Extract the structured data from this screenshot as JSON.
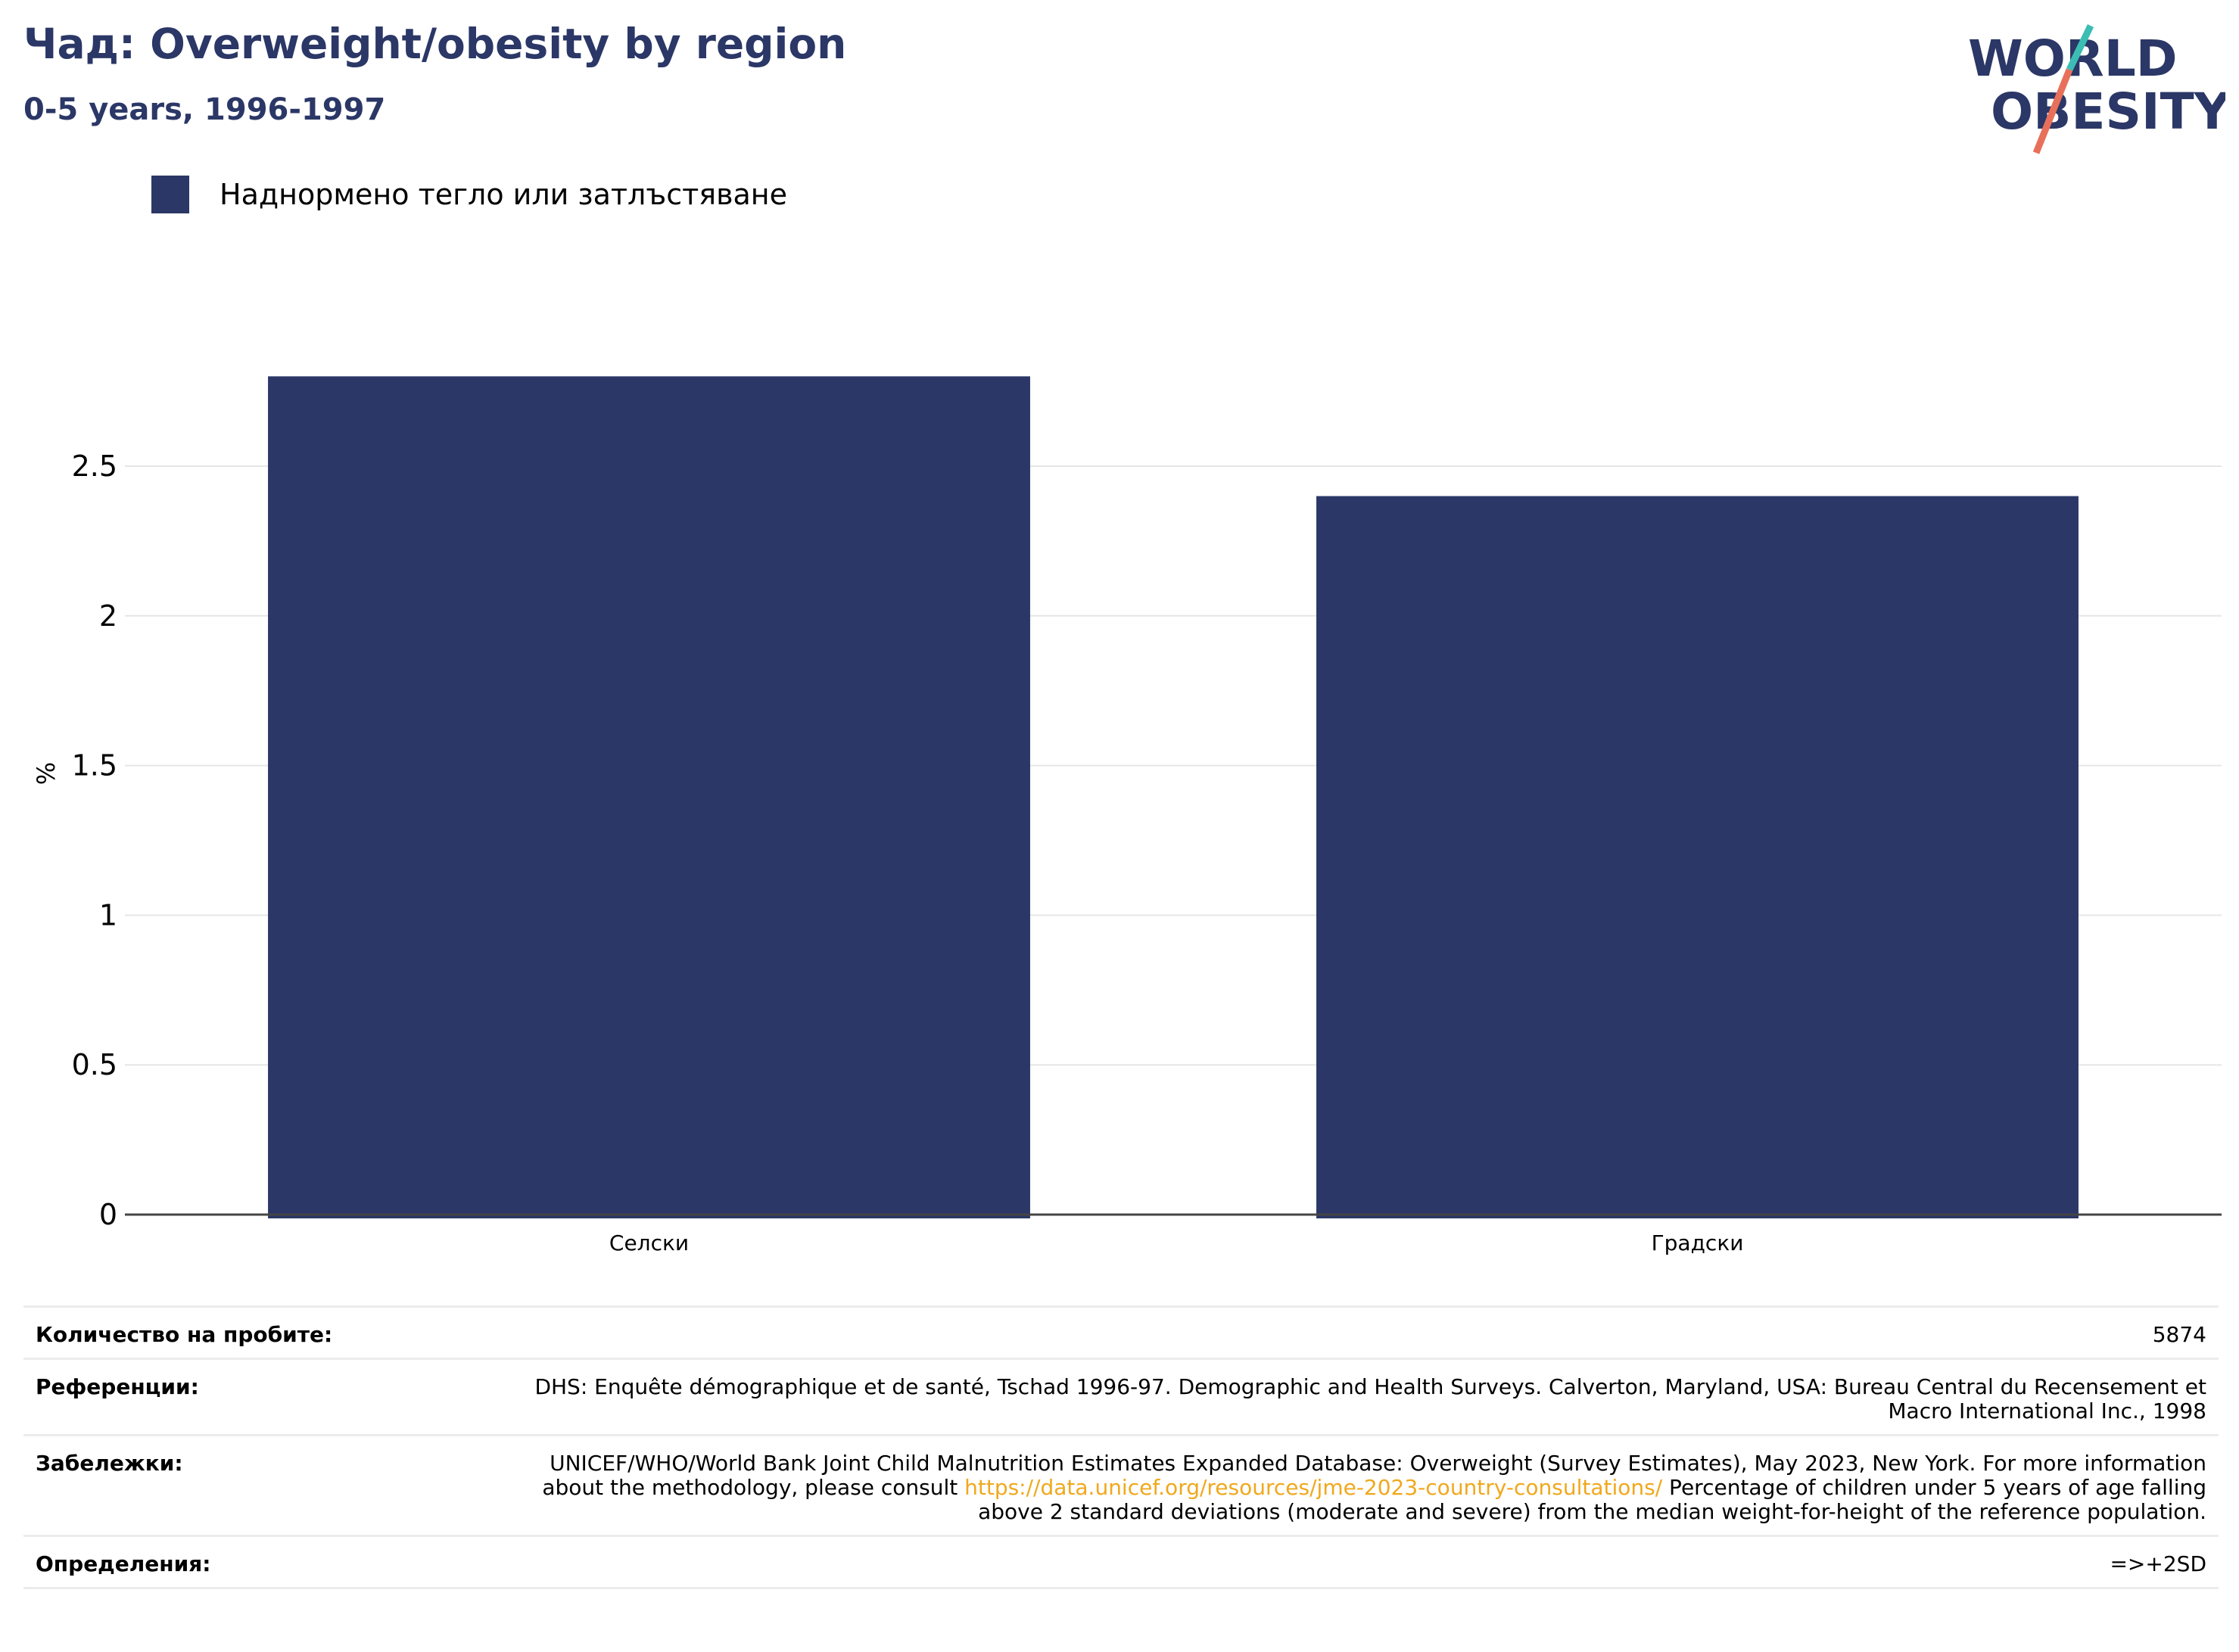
{
  "header": {
    "title": "Чад: Overweight/obesity by region",
    "subtitle": "0-5 years, 1996-1997"
  },
  "logo": {
    "line1": "WORLD",
    "line2": "OBESITY",
    "colors": {
      "text": "#2b3766",
      "slash_top": "#3bbdb4",
      "slash_bottom": "#e8705a"
    }
  },
  "legend": {
    "label": "Наднормено тегло или затлъстяване",
    "color": "#2b3766"
  },
  "chart_data": {
    "type": "bar",
    "categories": [
      "Селски",
      "Градски"
    ],
    "series": [
      {
        "name": "Наднормено тегло или затлъстяване",
        "values": [
          2.8,
          2.4
        ]
      }
    ],
    "ylabel": "%",
    "ylim": [
      0,
      2.9
    ],
    "yticks": [
      0,
      0.5,
      1,
      1.5,
      2,
      2.5
    ],
    "ytick_labels": [
      "0",
      "0.5",
      "1",
      "1.5",
      "2",
      "2.5"
    ],
    "grid": true,
    "bar_color": "#2b3766"
  },
  "footer": {
    "sample_label": "Количество на пробите:",
    "sample_value": "5874",
    "references_label": "Референции:",
    "references_value": "DHS: Enquête démographique et de santé, Tschad 1996-97. Demographic and Health Surveys. Calverton, Maryland, USA: Bureau Central du Recensement et Macro International Inc., 1998",
    "notes_label": "Забележки:",
    "notes_before": "UNICEF/WHO/World Bank Joint Child Malnutrition Estimates Expanded Database: Overweight (Survey Estimates), May 2023, New York. For more information about the methodology, please consult ",
    "notes_link": "https://data.unicef.org/resources/jme-2023-country-consultations/",
    "notes_after": " Percentage of children under 5 years of age falling above 2 standard deviations (moderate and severe) from the median weight-for-height of the reference population.",
    "definitions_label": "Определения:",
    "definitions_value": "=>+2SD"
  }
}
